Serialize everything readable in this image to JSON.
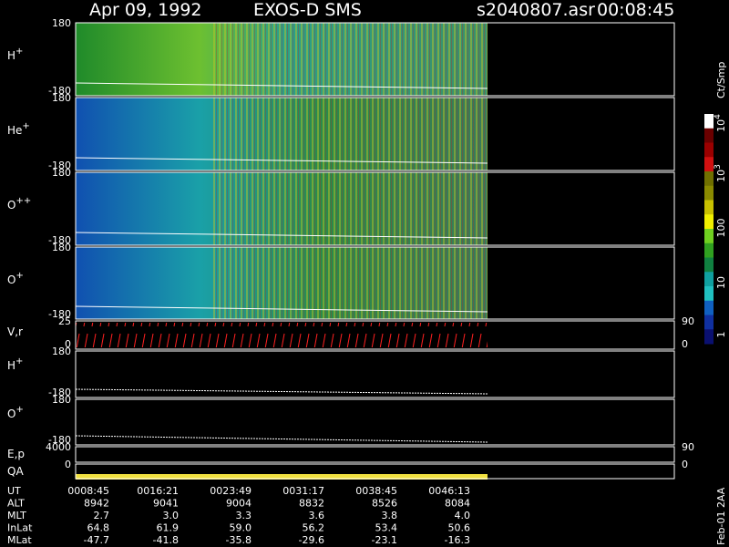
{
  "header": {
    "date": "Apr 09, 1992",
    "title": "EXOS-D SMS",
    "file": "s2040807.asr",
    "time": "00:08:45"
  },
  "panels": [
    {
      "label": "H",
      "sup": "+",
      "ticks": [
        "180",
        "-180"
      ]
    },
    {
      "label": "He",
      "sup": "+",
      "ticks": [
        "180",
        "-180"
      ]
    },
    {
      "label": "O",
      "sup": "++",
      "ticks": [
        "180",
        "-180"
      ]
    },
    {
      "label": "O",
      "sup": "+",
      "ticks": [
        "180",
        "-180"
      ]
    },
    {
      "label": "V,r",
      "ticks": [
        "25",
        "0"
      ],
      "right_ticks": [
        "90",
        "0"
      ]
    },
    {
      "label": "H",
      "sup": "+",
      "ticks": [
        "180",
        "-180"
      ]
    },
    {
      "label": "O",
      "sup": "+",
      "ticks": [
        "180",
        "-180"
      ]
    },
    {
      "label": "E,p",
      "ticks": [
        "4000"
      ],
      "right_ticks": [
        "90"
      ]
    },
    {
      "label": "QA",
      "ticks": [
        "0"
      ],
      "right_ticks": [
        "0"
      ]
    }
  ],
  "colorbar": {
    "title": "Ct/Smp",
    "labels": [
      {
        "base": "10",
        "sup": "4"
      },
      {
        "base": "10",
        "sup": "3"
      },
      {
        "base": "100"
      },
      {
        "base": "10"
      },
      {
        "base": "1"
      }
    ]
  },
  "footer": {
    "rows": [
      {
        "name": "UT",
        "values": [
          "0008:45",
          "0016:21",
          "0023:49",
          "0031:17",
          "0038:45",
          "0046:13"
        ]
      },
      {
        "name": "ALT",
        "values": [
          "8942",
          "9041",
          "9004",
          "8832",
          "8526",
          "8084"
        ]
      },
      {
        "name": "MLT",
        "values": [
          "2.7",
          "3.0",
          "3.3",
          "3.6",
          "3.8",
          "4.0"
        ]
      },
      {
        "name": "InLat",
        "values": [
          "64.8",
          "61.9",
          "59.0",
          "56.2",
          "53.4",
          "50.6"
        ]
      },
      {
        "name": "MLat",
        "values": [
          "-47.7",
          "-41.8",
          "-35.8",
          "-29.6",
          "-23.1",
          "-16.3"
        ]
      }
    ]
  },
  "stamp": "Feb-01 2AA"
}
